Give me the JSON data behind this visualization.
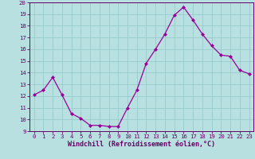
{
  "x": [
    0,
    1,
    2,
    3,
    4,
    5,
    6,
    7,
    8,
    9,
    10,
    11,
    12,
    13,
    14,
    15,
    16,
    17,
    18,
    19,
    20,
    21,
    22,
    23
  ],
  "y": [
    12.1,
    12.5,
    13.6,
    12.1,
    10.5,
    10.1,
    9.5,
    9.5,
    9.4,
    9.4,
    11.0,
    12.5,
    14.8,
    16.0,
    17.3,
    18.9,
    19.6,
    18.5,
    17.3,
    16.3,
    15.5,
    15.4,
    14.2,
    13.9
  ],
  "line_color": "#990099",
  "marker": "D",
  "marker_size": 2.0,
  "bg_color": "#b8e0e0",
  "grid_color": "#99cccc",
  "xlabel": "Windchill (Refroidissement éolien,°C)",
  "xlim": [
    -0.5,
    23.5
  ],
  "ylim": [
    9,
    20
  ],
  "yticks": [
    9,
    10,
    11,
    12,
    13,
    14,
    15,
    16,
    17,
    18,
    19,
    20
  ],
  "xticks": [
    0,
    1,
    2,
    3,
    4,
    5,
    6,
    7,
    8,
    9,
    10,
    11,
    12,
    13,
    14,
    15,
    16,
    17,
    18,
    19,
    20,
    21,
    22,
    23
  ],
  "tick_color": "#660066",
  "label_color": "#660066",
  "spine_color": "#660066",
  "tick_fontsize": 5.2,
  "xlabel_fontsize": 6.0
}
